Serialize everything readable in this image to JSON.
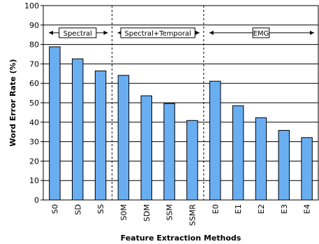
{
  "chart_data": {
    "type": "bar",
    "title": "",
    "xlabel": "Feature Extraction Methods",
    "ylabel": "Word Error Rate (%)",
    "ylim": [
      0,
      100
    ],
    "yticks": [
      0,
      10,
      20,
      30,
      40,
      50,
      60,
      70,
      80,
      90,
      100
    ],
    "grid": true,
    "categories": [
      "S0",
      "SD",
      "SS",
      "S0M",
      "SDM",
      "SSM",
      "SSMR",
      "E0",
      "E1",
      "E2",
      "E3",
      "E4"
    ],
    "values": [
      78.8,
      72.6,
      66.4,
      64.1,
      53.6,
      49.6,
      40.9,
      61.1,
      48.5,
      42.3,
      35.8,
      32.1
    ],
    "bar_color": "#6aaef2",
    "groups": [
      {
        "label": "Spectral",
        "from": 0,
        "to": 2
      },
      {
        "label": "Spectral+Temporal",
        "from": 3,
        "to": 6
      },
      {
        "label": "EMG",
        "from": 7,
        "to": 11
      }
    ]
  }
}
